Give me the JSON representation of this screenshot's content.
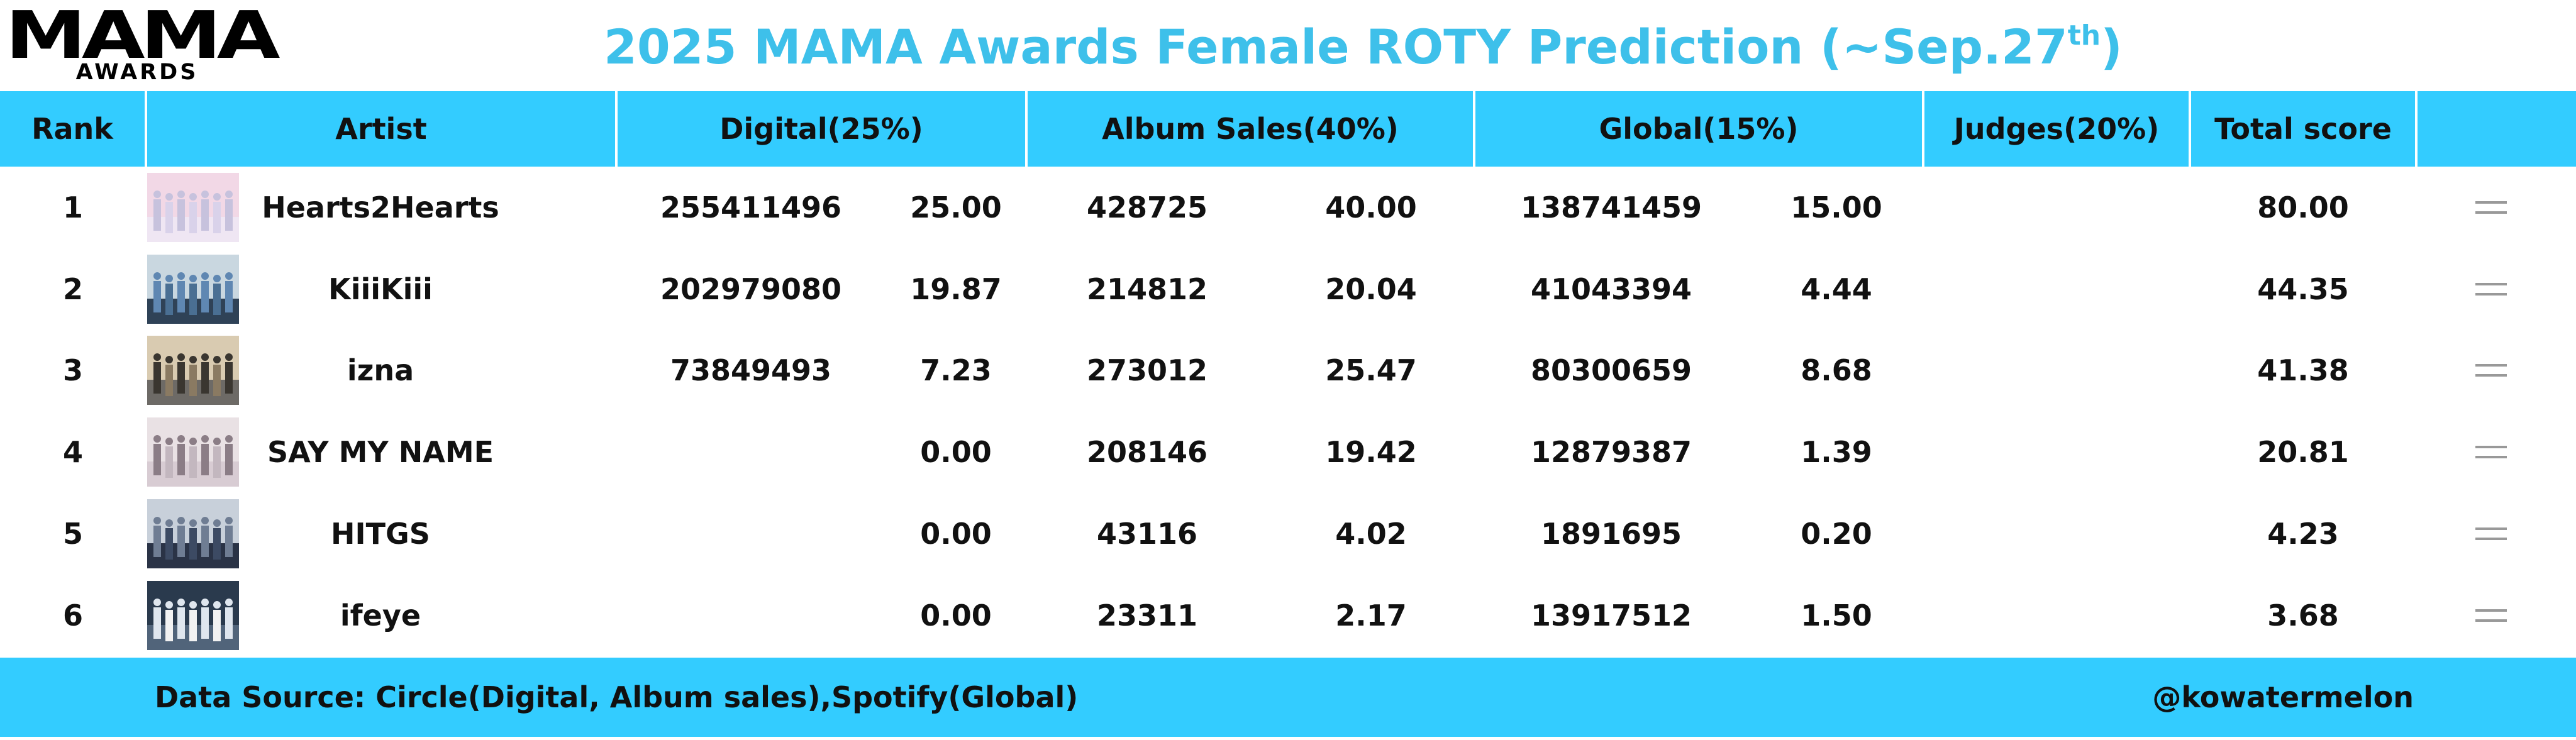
{
  "logo": {
    "main": "MAMA",
    "sub": "AWARDS"
  },
  "title": {
    "text": "2025 MAMA Awards  Female ROTY Prediction (~Sep.27",
    "superscript": "th",
    "closing": ")"
  },
  "colors": {
    "accent": "#33ccff",
    "title": "#3ec0ea",
    "text": "#111111"
  },
  "table": {
    "headers": {
      "rank": "Rank",
      "artist": "Artist",
      "digital": "Digital(25%)",
      "album": "Album Sales(40%)",
      "global": "Global(15%)",
      "judges": "Judges(20%)",
      "total": "Total score",
      "change": ""
    },
    "rows": [
      {
        "rank": "1",
        "artist": "Hearts2Hearts",
        "digital_raw": "255411496",
        "digital_score": "25.00",
        "album_raw": "428725",
        "album_score": "40.00",
        "global_raw": "138741459",
        "global_score": "15.00",
        "judges": "",
        "total": "80.00",
        "change_icon": "equal-icon"
      },
      {
        "rank": "2",
        "artist": "KiiiKiii",
        "digital_raw": "202979080",
        "digital_score": "19.87",
        "album_raw": "214812",
        "album_score": "20.04",
        "global_raw": "41043394",
        "global_score": "4.44",
        "judges": "",
        "total": "44.35",
        "change_icon": "equal-icon"
      },
      {
        "rank": "3",
        "artist": "izna",
        "digital_raw": "73849493",
        "digital_score": "7.23",
        "album_raw": "273012",
        "album_score": "25.47",
        "global_raw": "80300659",
        "global_score": "8.68",
        "judges": "",
        "total": "41.38",
        "change_icon": "equal-icon"
      },
      {
        "rank": "4",
        "artist": "SAY MY NAME",
        "digital_raw": "",
        "digital_score": "0.00",
        "album_raw": "208146",
        "album_score": "19.42",
        "global_raw": "12879387",
        "global_score": "1.39",
        "judges": "",
        "total": "20.81",
        "change_icon": "equal-icon"
      },
      {
        "rank": "5",
        "artist": "HITGS",
        "digital_raw": "",
        "digital_score": "0.00",
        "album_raw": "43116",
        "album_score": "4.02",
        "global_raw": "1891695",
        "global_score": "0.20",
        "judges": "",
        "total": "4.23",
        "change_icon": "equal-icon"
      },
      {
        "rank": "6",
        "artist": "ifeye",
        "digital_raw": "",
        "digital_score": "0.00",
        "album_raw": "23311",
        "album_score": "2.17",
        "global_raw": "13917512",
        "global_score": "1.50",
        "judges": "",
        "total": "3.68",
        "change_icon": "equal-icon"
      }
    ]
  },
  "footer": {
    "source": "Data Source: Circle(Digital, Album sales),Spotify(Global)",
    "handle": "@kowatermelon"
  }
}
